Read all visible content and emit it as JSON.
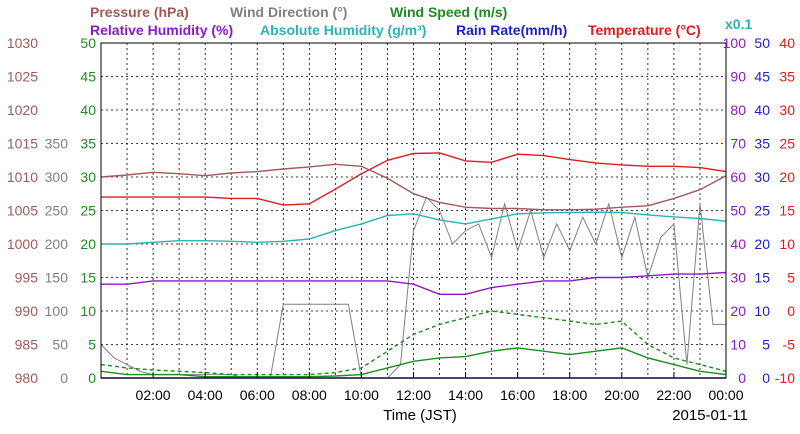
{
  "chart_data": {
    "type": "line",
    "title_rows": [
      [
        {
          "text": "Pressure (hPa)",
          "color": "#a05a5a"
        },
        {
          "text": "Wind Direction (°)",
          "color": "#808080"
        },
        {
          "text": "Wind Speed (m/s)",
          "color": "#1e8c1e"
        }
      ],
      [
        {
          "text": "Relative Humidity (%)",
          "color": "#8c19c8"
        },
        {
          "text": "Absolute Humidity (g/m³)",
          "color": "#2bb3b3"
        },
        {
          "text": "Rain Rate(mm/h)",
          "color": "#1e1ec8"
        },
        {
          "text": "Temperature (°C)",
          "color": "#e31a1a"
        }
      ]
    ],
    "abs_humidity_scale_note": "x0.1",
    "xlabel": "Time (JST)",
    "date_label": "2015-01-11",
    "x_ticks": [
      "02:00",
      "04:00",
      "06:00",
      "08:00",
      "10:00",
      "12:00",
      "14:00",
      "16:00",
      "18:00",
      "20:00",
      "22:00",
      "00:00"
    ],
    "x_range_hours": [
      0,
      24
    ],
    "grid": true,
    "axes": {
      "pressure": {
        "color": "#a05a5a",
        "ticks": [
          "1030",
          "1025",
          "1020",
          "1015",
          "1010",
          "1005",
          "1000",
          "995",
          "990",
          "985",
          "980"
        ]
      },
      "wind_dir": {
        "color": "#808080",
        "ticks": [
          "350",
          "300",
          "250",
          "200",
          "150",
          "100",
          "50",
          "0"
        ]
      },
      "wind_speed": {
        "color": "#1e8c1e",
        "ticks": [
          "50",
          "45",
          "40",
          "35",
          "30",
          "25",
          "20",
          "15",
          "10",
          "5",
          "0"
        ]
      },
      "humidity": {
        "color": "#8c19c8",
        "ticks": [
          "100",
          "90",
          "80",
          "70",
          "60",
          "50",
          "40",
          "30",
          "20",
          "10",
          "0"
        ]
      },
      "rain": {
        "color": "#1e1ec8",
        "ticks": [
          "50",
          "45",
          "40",
          "35",
          "30",
          "25",
          "20",
          "15",
          "10",
          "5",
          "0"
        ]
      },
      "temperature": {
        "color": "#e31a1a",
        "ticks": [
          "40",
          "35",
          "30",
          "25",
          "20",
          "15",
          "10",
          "5",
          "0",
          "-5",
          "-10"
        ]
      }
    },
    "series": [
      {
        "name": "Pressure",
        "unit": "hPa",
        "color": "#a05a5a",
        "axis": "pressure",
        "x": [
          0,
          1,
          2,
          3,
          4,
          5,
          6,
          7,
          8,
          9,
          10,
          11,
          12,
          13,
          14,
          15,
          16,
          17,
          18,
          19,
          20,
          21,
          22,
          23,
          24
        ],
        "y": [
          1010,
          1010.3,
          1010.7,
          1010.5,
          1010.2,
          1010.6,
          1010.8,
          1011.2,
          1011.5,
          1011.9,
          1011.6,
          1009.8,
          1007.5,
          1006.2,
          1005.5,
          1005.3,
          1005.3,
          1005.1,
          1005.1,
          1005.2,
          1005.5,
          1005.7,
          1006.8,
          1008.1,
          1010.2
        ]
      },
      {
        "name": "Temperature",
        "unit": "°C",
        "color": "#e31a1a",
        "axis": "temperature",
        "x": [
          0,
          1,
          2,
          3,
          4,
          5,
          6,
          7,
          8,
          9,
          10,
          11,
          12,
          13,
          14,
          15,
          16,
          17,
          18,
          19,
          20,
          21,
          22,
          23,
          24
        ],
        "y": [
          17,
          17,
          17,
          17,
          17,
          16.8,
          16.8,
          15.8,
          16,
          18.2,
          20.5,
          22.5,
          23.5,
          23.6,
          22.4,
          22.2,
          23.4,
          23.2,
          22.6,
          22.1,
          21.8,
          21.6,
          21.6,
          21.4,
          20.8
        ]
      },
      {
        "name": "Absolute Humidity",
        "unit": "g/m³ x0.1",
        "color": "#2bb3b3",
        "axis": "humidity",
        "x": [
          0,
          1,
          2,
          3,
          4,
          5,
          6,
          7,
          8,
          9,
          10,
          11,
          12,
          13,
          14,
          15,
          16,
          17,
          18,
          19,
          20,
          21,
          22,
          23,
          24
        ],
        "y": [
          40,
          40,
          40.5,
          41,
          41,
          40.8,
          40.5,
          40.8,
          41.5,
          44,
          46,
          48.5,
          49,
          47.2,
          46,
          47.5,
          49,
          49.3,
          49.4,
          49.5,
          49.4,
          48.7,
          48.1,
          47.6,
          46.8
        ]
      },
      {
        "name": "Relative Humidity",
        "unit": "%",
        "color": "#8c19c8",
        "axis": "humidity",
        "x": [
          0,
          1,
          2,
          3,
          4,
          5,
          6,
          7,
          8,
          9,
          10,
          11,
          12,
          13,
          14,
          15,
          16,
          17,
          18,
          19,
          20,
          21,
          22,
          23,
          24
        ],
        "y": [
          28,
          28,
          29,
          29,
          29,
          29,
          29,
          29,
          29,
          29,
          29,
          29,
          28,
          25,
          25,
          27,
          28,
          29,
          29,
          30,
          30,
          30.5,
          31,
          31,
          31.5
        ]
      },
      {
        "name": "Wind Direction",
        "unit": "°",
        "color": "#808080",
        "axis": "wind_dir",
        "x": [
          0,
          0.5,
          1,
          1.5,
          2,
          2.5,
          3,
          3.5,
          4,
          4.5,
          5,
          5.5,
          6,
          6.5,
          7,
          7.5,
          8,
          8.5,
          9,
          9.5,
          10,
          10.5,
          11,
          11.5,
          12,
          12.5,
          13,
          13.5,
          14,
          14.5,
          15,
          15.5,
          16,
          16.5,
          17,
          17.5,
          18,
          18.5,
          19,
          19.5,
          20,
          20.5,
          21,
          21.5,
          22,
          22.5,
          23,
          23.5,
          24
        ],
        "y": [
          50,
          30,
          20,
          10,
          5,
          5,
          5,
          5,
          5,
          5,
          5,
          0,
          0,
          0,
          110,
          110,
          110,
          110,
          110,
          110,
          0,
          0,
          0,
          20,
          220,
          270,
          250,
          200,
          220,
          230,
          180,
          260,
          190,
          250,
          180,
          230,
          190,
          240,
          200,
          260,
          180,
          240,
          150,
          210,
          230,
          20,
          260,
          80,
          80
        ]
      },
      {
        "name": "Wind Speed",
        "unit": "m/s",
        "color": "#1e8c1e",
        "axis": "wind_speed",
        "x": [
          0,
          1,
          2,
          3,
          4,
          5,
          6,
          7,
          8,
          9,
          10,
          11,
          12,
          13,
          14,
          15,
          16,
          17,
          18,
          19,
          20,
          21,
          22,
          23,
          24
        ],
        "y": [
          1,
          0.5,
          0.5,
          0.5,
          0.2,
          0.2,
          0.2,
          0.2,
          0.2,
          0.3,
          0.5,
          1.5,
          2.5,
          3,
          3.2,
          4,
          4.5,
          4,
          3.5,
          4,
          4.5,
          3,
          2,
          1,
          0.5
        ]
      },
      {
        "name": "Wind Speed (gust)",
        "unit": "m/s",
        "color": "#1e8c1e",
        "dashed": true,
        "axis": "wind_speed",
        "x": [
          0,
          1,
          2,
          3,
          4,
          5,
          6,
          7,
          8,
          9,
          10,
          11,
          12,
          13,
          14,
          15,
          16,
          17,
          18,
          19,
          20,
          21,
          22,
          23,
          24
        ],
        "y": [
          2,
          1.5,
          1.2,
          1,
          0.8,
          0.5,
          0.5,
          0.5,
          0.5,
          0.8,
          1.5,
          4,
          6.5,
          8,
          9,
          10,
          9.5,
          9,
          8.5,
          8,
          8.5,
          5,
          3,
          2,
          1
        ]
      },
      {
        "name": "Rain Rate",
        "unit": "mm/h",
        "color": "#1e1ec8",
        "axis": "rain",
        "x": [
          0,
          24
        ],
        "y": [
          0,
          0
        ]
      }
    ]
  }
}
